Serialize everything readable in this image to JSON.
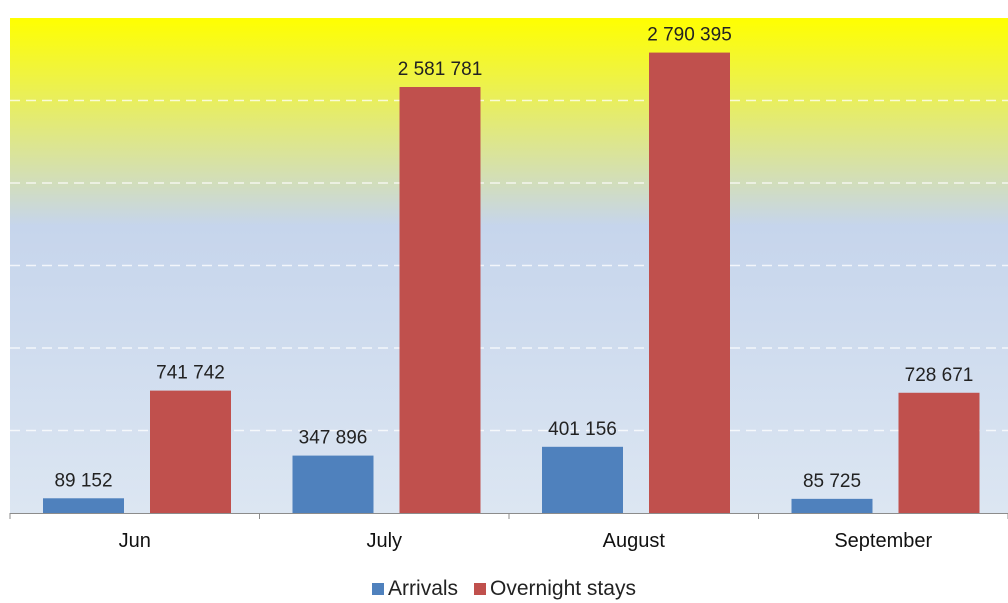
{
  "chart_data": {
    "type": "bar",
    "categories": [
      "Jun",
      "July",
      "August",
      "September"
    ],
    "series": [
      {
        "name": "Arrivals",
        "color": "#4F81BD",
        "values": [
          89152,
          347896,
          401156,
          85725
        ],
        "labels": [
          "89 152",
          "347 896",
          "401 156",
          "85 725"
        ]
      },
      {
        "name": "Overnight stays",
        "color": "#C0504D",
        "values": [
          741742,
          2581781,
          2790395,
          728671
        ],
        "labels": [
          "741 742",
          "2 581 781",
          "2 790 395",
          "728 671"
        ]
      }
    ],
    "ylim": [
      0,
      3000000
    ],
    "grid": true,
    "legend_position": "bottom",
    "background_gradient": [
      "#FFFF00",
      "#C6D5EC",
      "#DCE6F2"
    ]
  }
}
